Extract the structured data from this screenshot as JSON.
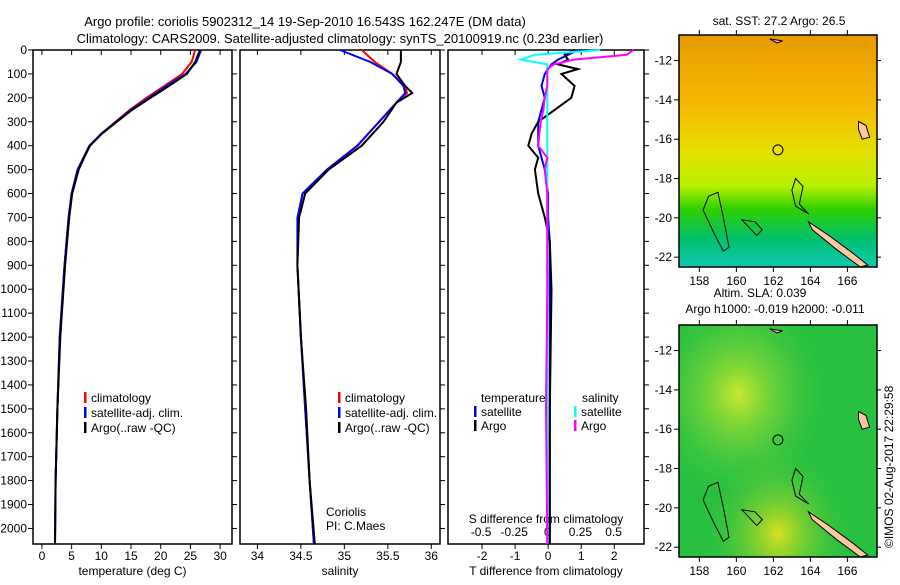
{
  "header": {
    "line1": "Argo profile: coriolis 5902312_14 19-Sep-2010 16.543S 162.247E (DM data)",
    "line2": "Climatology: CARS2009. Satellite-adjusted climatology: synTS_20100919.nc (0.23d earlier)"
  },
  "credit": "©IMOS 02-Aug-2017 22:29:58",
  "colors": {
    "clim": "#ff0000",
    "sat": "#0000ff",
    "argo": "#000000",
    "sal_sat": "#00ffff",
    "sal_argo": "#ff00ff"
  },
  "chart_data": [
    {
      "type": "line",
      "name": "temperature",
      "xlabel": "temperature (deg C)",
      "xlim": [
        -1.5,
        32
      ],
      "ylim": [
        2065,
        0
      ],
      "xticks": [
        "0",
        "5",
        "10",
        "15",
        "20",
        "25",
        "30"
      ],
      "yticks": [
        "0",
        "100",
        "200",
        "300",
        "400",
        "500",
        "600",
        "700",
        "800",
        "900",
        "1000",
        "1100",
        "1200",
        "1300",
        "1400",
        "1500",
        "1600",
        "1700",
        "1800",
        "1900",
        "2000"
      ],
      "legend": [
        "climatology",
        "satellite-adj. clim.",
        "Argo(..raw -QC)"
      ],
      "depth": [
        0,
        50,
        100,
        150,
        200,
        250,
        300,
        350,
        400,
        450,
        500,
        600,
        700,
        900,
        1200,
        1500,
        1800,
        2065
      ],
      "series": [
        {
          "name": "climatology",
          "values": [
            25.8,
            25.2,
            23.6,
            20.6,
            17.6,
            14.8,
            12.4,
            10.0,
            8.0,
            7.0,
            6.0,
            5.0,
            4.5,
            3.8,
            3.0,
            2.6,
            2.3,
            2.2
          ]
        },
        {
          "name": "satellite-adj. clim.",
          "values": [
            26.8,
            26.0,
            24.2,
            21.0,
            18.0,
            15.0,
            12.5,
            10.0,
            8.0,
            7.0,
            6.0,
            5.0,
            4.5,
            3.8,
            3.0,
            2.6,
            2.3,
            2.2
          ]
        },
        {
          "name": "Argo(..raw -QC)",
          "values": [
            26.6,
            25.8,
            24.4,
            21.4,
            18.3,
            15.2,
            12.6,
            10.1,
            8.1,
            7.1,
            6.2,
            5.1,
            4.6,
            3.9,
            3.1,
            2.6,
            2.3,
            2.2
          ]
        }
      ]
    },
    {
      "type": "line",
      "name": "salinity",
      "xlabel": "salinity",
      "xlim": [
        33.8,
        36.1
      ],
      "ylim": [
        2065,
        0
      ],
      "xticks": [
        "34",
        "34.5",
        "35",
        "35.5",
        "36"
      ],
      "legend": [
        "climatology",
        "satellite-adj. clim.",
        "Argo(..raw -QC)"
      ],
      "annotation": [
        "Coriolis",
        "PI: C.Maes"
      ],
      "depth": [
        0,
        50,
        100,
        150,
        180,
        220,
        300,
        400,
        500,
        600,
        700,
        900,
        1200,
        1500,
        1800,
        2065
      ],
      "series": [
        {
          "name": "climatology",
          "values": [
            35.2,
            35.35,
            35.55,
            35.7,
            35.72,
            35.6,
            35.4,
            35.15,
            34.8,
            34.52,
            34.47,
            34.46,
            34.5,
            34.55,
            34.6,
            34.65
          ]
        },
        {
          "name": "satellite-adj. clim.",
          "values": [
            34.95,
            35.3,
            35.55,
            35.68,
            35.7,
            35.6,
            35.4,
            35.15,
            34.8,
            34.52,
            34.46,
            34.46,
            34.5,
            34.55,
            34.6,
            34.65
          ]
        },
        {
          "name": "Argo(..raw -QC)",
          "values": [
            35.65,
            35.65,
            35.6,
            35.7,
            35.78,
            35.6,
            35.45,
            35.2,
            34.82,
            34.55,
            34.48,
            34.46,
            34.5,
            34.56,
            34.6,
            34.66
          ]
        }
      ]
    },
    {
      "type": "line",
      "name": "difference",
      "xlabel": "T difference from climatology",
      "xlabel2": "S difference from climatology",
      "xlim": [
        -3.03,
        2.9
      ],
      "x2lim": [
        -0.75,
        0.73
      ],
      "ylim": [
        2065,
        0
      ],
      "xticks": [
        "-2",
        "-1",
        "0",
        "1",
        "2"
      ],
      "x2ticks": [
        "-0.5",
        "-0.25",
        "0",
        "0.25",
        "0.5"
      ],
      "legend_temp_title": "temperature",
      "legend_sal_title": "salinity",
      "legend": [
        "satellite",
        "Argo",
        "satellite",
        "Argo"
      ],
      "depth": [
        0,
        20,
        40,
        60,
        80,
        100,
        150,
        200,
        250,
        300,
        350,
        400,
        450,
        500,
        600,
        700,
        800,
        1000,
        1500,
        2065
      ],
      "series": [
        {
          "name": "temperature satellite",
          "axis": "T",
          "values": [
            0.9,
            0.6,
            0.3,
            0.1,
            0.0,
            -0.1,
            -0.2,
            -0.1,
            -0.2,
            -0.3,
            -0.3,
            -0.3,
            -0.2,
            -0.1,
            0.0,
            0.0,
            0.05,
            0.05,
            0.05,
            0.05
          ]
        },
        {
          "name": "temperature Argo",
          "axis": "T",
          "values": [
            0.8,
            0.5,
            0.6,
            0.3,
            0.9,
            0.4,
            0.8,
            0.7,
            0.2,
            -0.3,
            -0.5,
            -0.6,
            -0.3,
            -0.4,
            -0.3,
            -0.1,
            0.05,
            0.1,
            0.05,
            0.05
          ]
        },
        {
          "name": "salinity satellite",
          "axis": "S",
          "values": [
            0.4,
            -0.1,
            -0.2,
            0.0,
            0.0,
            0.0,
            0.0,
            0.0,
            0.0,
            0.0,
            0.0,
            0.0,
            0.0,
            0.0,
            0.0,
            0.0,
            0.0,
            0.0,
            0.0,
            0.0
          ]
        },
        {
          "name": "salinity Argo",
          "axis": "S",
          "values": [
            0.65,
            0.6,
            0.2,
            0.05,
            0.0,
            0.0,
            0.0,
            -0.02,
            -0.03,
            -0.05,
            -0.06,
            -0.07,
            0.0,
            -0.02,
            0.0,
            0.0,
            0.0,
            0.0,
            -0.01,
            0.0
          ]
        }
      ]
    },
    {
      "type": "heatmap",
      "name": "sst-map",
      "title": "sat. SST: 27.2 Argo: 26.5",
      "xticks": [
        "158",
        "160",
        "162",
        "164",
        "166"
      ],
      "yticks": [
        "-12",
        "-14",
        "-16",
        "-18",
        "-20",
        "-22"
      ],
      "xlim": [
        156.9,
        167.6
      ],
      "ylim": [
        -22.5,
        -10.7
      ],
      "argo_position": [
        162.247,
        -16.543
      ]
    },
    {
      "type": "heatmap",
      "name": "sla-map",
      "title": "Altim. SLA: 0.039",
      "subtitle": "Argo h1000: -0.019 h2000: -0.011",
      "xticks": [
        "158",
        "160",
        "162",
        "164",
        "166"
      ],
      "yticks": [
        "-12",
        "-14",
        "-16",
        "-18",
        "-20",
        "-22"
      ],
      "xlim": [
        156.9,
        167.6
      ],
      "ylim": [
        -22.5,
        -10.7
      ],
      "argo_position": [
        162.247,
        -16.543
      ]
    }
  ]
}
